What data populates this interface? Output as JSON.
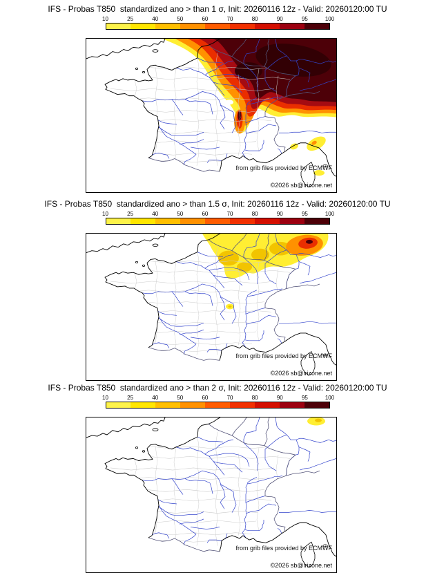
{
  "panels": [
    {
      "id": "prob-gt-1-sigma",
      "title": "IFS - Probas T850  standardized ano > than 1 σ, Init: 20260116 12z - Valid: 20260120:00 TU"
    },
    {
      "id": "prob-gt-1.5-sigma",
      "title": "IFS - Probas T850  standardized ano > than 1.5 σ, Init: 20260116 12z - Valid: 20260120:00 TU"
    },
    {
      "id": "prob-gt-2-sigma",
      "title": "IFS - Probas T850  standardized ano > than 2 σ, Init: 20260116 12z - Valid: 20260120:00 TU"
    }
  ],
  "colorbar": {
    "ticks": [
      "10",
      "25",
      "40",
      "50",
      "60",
      "70",
      "80",
      "90",
      "95",
      "100"
    ],
    "segment_colors": [
      "#fdf34a",
      "#ffe600",
      "#ffbf00",
      "#ff9100",
      "#ff5c00",
      "#f23000",
      "#d40f00",
      "#9c0010",
      "#4d0008"
    ]
  },
  "credits": {
    "line1": "from grib files provided by ECMWF",
    "line2": "©2026 sb@irizone.net"
  },
  "map": {
    "region": "France",
    "feature_colors": {
      "coastline": "#000000",
      "national_border": "#55557a",
      "river": "#3344cc",
      "department": "#cccccc"
    },
    "overlay_palette": {
      "yellow": "#ffee33",
      "gold": "#f2c400",
      "orange": "#ff9100",
      "red": "#ea2e00",
      "darkred": "#a50b12",
      "maroon": "#4d0008",
      "deep": "#320004"
    }
  }
}
